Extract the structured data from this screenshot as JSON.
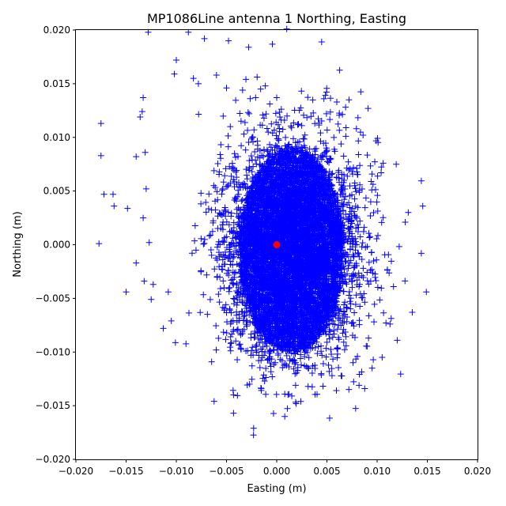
{
  "chart_data": {
    "type": "scatter",
    "title": "MP1086Line antenna 1 Northing, Easting",
    "xlabel": "Easting (m)",
    "ylabel": "Northing (m)",
    "xlim": [
      -0.02,
      0.02
    ],
    "ylim": [
      -0.02,
      0.02
    ],
    "xticks": [
      -0.02,
      -0.015,
      -0.01,
      -0.005,
      0.0,
      0.005,
      0.01,
      0.015,
      0.02
    ],
    "yticks": [
      -0.02,
      -0.015,
      -0.01,
      -0.005,
      0.0,
      0.005,
      0.01,
      0.015,
      0.02
    ],
    "xtick_labels": [
      "−0.020",
      "−0.015",
      "−0.010",
      "−0.005",
      "0.000",
      "0.005",
      "0.010",
      "0.015",
      "0.020"
    ],
    "ytick_labels": [
      "−0.020",
      "−0.015",
      "−0.010",
      "−0.005",
      "0.000",
      "0.005",
      "0.010",
      "0.015",
      "0.020"
    ],
    "grid": false,
    "series": [
      {
        "marker": "plus",
        "color": "#0000ff",
        "distribution": {
          "center": [
            0.0015,
            -0.0005
          ],
          "dense_core_radius": [
            0.0052,
            0.0095
          ],
          "spread": [
            0.0055,
            0.0065
          ],
          "approx_count": 9000
        },
        "outliers": [
          [
            -0.0175,
            0.0113
          ],
          [
            -0.0175,
            0.0083
          ],
          [
            -0.0172,
            0.0047
          ],
          [
            -0.0163,
            0.0047
          ],
          [
            -0.0162,
            0.0036
          ],
          [
            -0.0177,
            0.0001
          ],
          [
            -0.015,
            -0.0044
          ],
          [
            -0.0133,
            0.0137
          ],
          [
            -0.0134,
            0.0124
          ],
          [
            -0.0136,
            0.0119
          ],
          [
            -0.014,
            0.0082
          ],
          [
            -0.0131,
            0.0086
          ],
          [
            -0.0128,
            0.0198
          ],
          [
            -0.0088,
            0.0198
          ],
          [
            -0.0072,
            0.0192
          ],
          [
            -0.0048,
            0.019
          ],
          [
            -0.0028,
            0.0184
          ],
          [
            -0.01,
            0.0172
          ],
          [
            -0.0102,
            0.0159
          ],
          [
            -0.0083,
            0.0155
          ],
          [
            -0.0078,
            0.015
          ],
          [
            -0.006,
            0.0158
          ],
          [
            -0.005,
            0.0146
          ],
          [
            -0.0034,
            0.0144
          ],
          [
            -0.013,
            0.0052
          ],
          [
            -0.0127,
            0.0002
          ],
          [
            -0.0133,
            0.0025
          ],
          [
            -0.014,
            -0.0017
          ],
          [
            -0.0132,
            -0.0034
          ],
          [
            -0.0123,
            -0.0037
          ],
          [
            -0.0125,
            -0.0051
          ],
          [
            -0.0108,
            -0.0044
          ],
          [
            -0.0113,
            -0.0078
          ],
          [
            -0.0105,
            -0.0071
          ],
          [
            -0.0043,
            -0.014
          ],
          [
            -0.0043,
            -0.0157
          ],
          [
            -0.0023,
            -0.0171
          ],
          [
            0.0008,
            -0.016
          ],
          [
            0.0024,
            -0.0146
          ],
          [
            0.0015,
            -0.0141
          ],
          [
            0.0082,
            -0.0131
          ],
          [
            0.0095,
            -0.0115
          ],
          [
            0.0105,
            -0.0105
          ],
          [
            0.012,
            -0.0089
          ],
          [
            0.0135,
            -0.0063
          ],
          [
            0.0149,
            -0.0044
          ],
          [
            0.0144,
            -0.0008
          ],
          [
            0.0128,
            0.0021
          ],
          [
            0.0131,
            0.003
          ],
          [
            0.0119,
            0.0075
          ],
          [
            0.0106,
            0.0076
          ],
          [
            0.0104,
            0.0067
          ],
          [
            0.0086,
            0.0102
          ],
          [
            0.0072,
            0.0135
          ],
          [
            0.0091,
            0.0127
          ],
          [
            0.0047,
            0.0136
          ],
          [
            0.001,
            0.0201
          ],
          [
            0.0,
            0.0137
          ],
          [
            -0.0016,
            0.0145
          ],
          [
            -0.0021,
            0.0137
          ]
        ]
      },
      {
        "name": "",
        "marker": "circle",
        "color": "#ff0000",
        "points": [
          [
            0.0,
            0.0
          ]
        ]
      }
    ]
  }
}
